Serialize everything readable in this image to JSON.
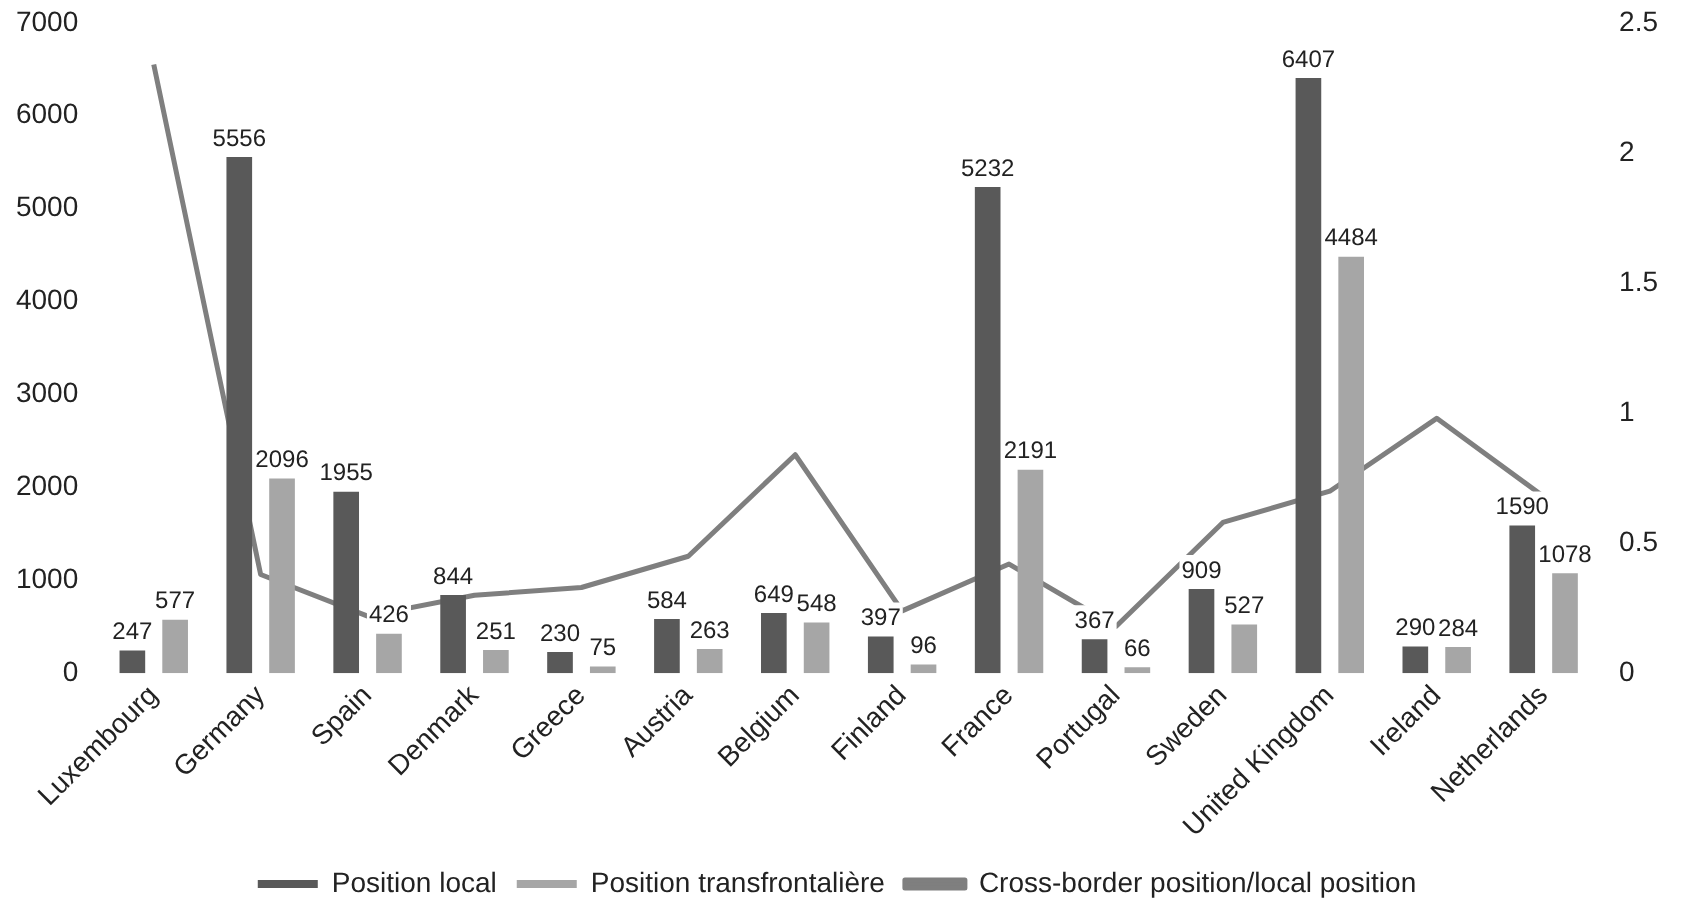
{
  "chart_data": {
    "type": "bar",
    "categories": [
      "Luxembourg",
      "Germany",
      "Spain",
      "Denmark",
      "Greece",
      "Austria",
      "Belgium",
      "Finland",
      "France",
      "Portugal",
      "Sweden",
      "United Kingdom",
      "Ireland",
      "Netherlands"
    ],
    "series": [
      {
        "name": "Position local",
        "color": "#595959",
        "values": [
          247,
          5556,
          1955,
          844,
          230,
          584,
          649,
          397,
          5232,
          367,
          909,
          6407,
          290,
          1590
        ],
        "value_labels": [
          "247",
          "5556",
          "1955",
          "844",
          "230",
          "584",
          "649",
          "397",
          "5232",
          "367",
          "909",
          "6407",
          "290",
          "1590"
        ]
      },
      {
        "name": "Position transfrontalière",
        "color": "#a6a6a6",
        "values": [
          577,
          2096,
          426,
          251,
          75,
          263,
          548,
          96,
          2191,
          66,
          527,
          4484,
          284,
          1078
        ],
        "value_labels": [
          "577",
          "2096",
          "426",
          "251",
          "75",
          "263",
          "548",
          "96",
          "2191",
          "66",
          "527",
          "4484",
          "284",
          "1078"
        ]
      },
      {
        "name": "Cross-border position/local position",
        "type": "line",
        "axis": "y2",
        "color": "#7f7f7f",
        "values": [
          2.34,
          0.38,
          0.22,
          0.3,
          0.33,
          0.45,
          0.84,
          0.24,
          0.42,
          0.18,
          0.58,
          0.7,
          0.98,
          0.68
        ]
      }
    ],
    "ylim": [
      0,
      7000
    ],
    "yticks": [
      0,
      1000,
      2000,
      3000,
      4000,
      5000,
      6000,
      7000
    ],
    "y2lim": [
      0,
      2.5
    ],
    "y2ticks": [
      0,
      0.5,
      1,
      1.5,
      2,
      2.5
    ],
    "grid": false,
    "legend": "bottom",
    "marker": "none"
  }
}
